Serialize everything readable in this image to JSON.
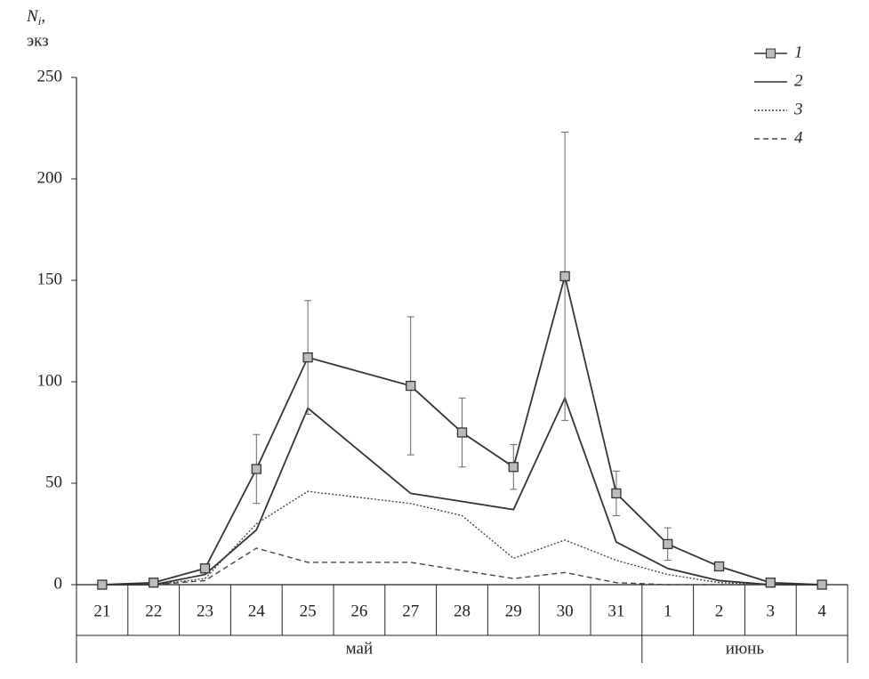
{
  "chart_data": {
    "type": "line",
    "ylabel_main": "N",
    "ylabel_sub": "i",
    "ylabel_sep": ",",
    "ylabel_unit": "экз",
    "categories": [
      "21",
      "22",
      "23",
      "24",
      "25",
      "26",
      "27",
      "28",
      "29",
      "30",
      "31",
      "1",
      "2",
      "3",
      "4"
    ],
    "months": [
      {
        "name": "май",
        "span": 11
      },
      {
        "name": "июнь",
        "span": 4
      }
    ],
    "ylim": [
      0,
      250
    ],
    "yticks": [
      0,
      50,
      100,
      150,
      200,
      250
    ],
    "grid": false,
    "legend": "upper right",
    "connect_gaps": true,
    "series": [
      {
        "name": "1",
        "color": "#333",
        "style": "solid",
        "marker": "square",
        "values": [
          0,
          1,
          8,
          57,
          112,
          null,
          98,
          75,
          58,
          152,
          45,
          20,
          9,
          1,
          0
        ],
        "errors": [
          0,
          0,
          0,
          17,
          28,
          null,
          34,
          17,
          11,
          71,
          11,
          8,
          0,
          0,
          0
        ]
      },
      {
        "name": "2",
        "color": "#333",
        "style": "solid",
        "values": [
          0,
          0,
          5,
          27,
          87,
          66,
          45,
          41,
          37,
          92,
          21,
          8,
          2,
          0,
          0
        ]
      },
      {
        "name": "3",
        "color": "#444",
        "style": "dotted",
        "values": [
          0,
          0,
          3,
          30,
          46,
          43,
          40,
          34,
          13,
          22,
          12,
          5,
          1,
          0,
          0
        ]
      },
      {
        "name": "4",
        "color": "#444",
        "style": "dashed",
        "values": [
          0,
          0,
          2,
          18,
          11,
          11,
          11,
          7,
          3,
          6,
          1,
          0,
          0,
          0,
          0
        ]
      }
    ]
  }
}
